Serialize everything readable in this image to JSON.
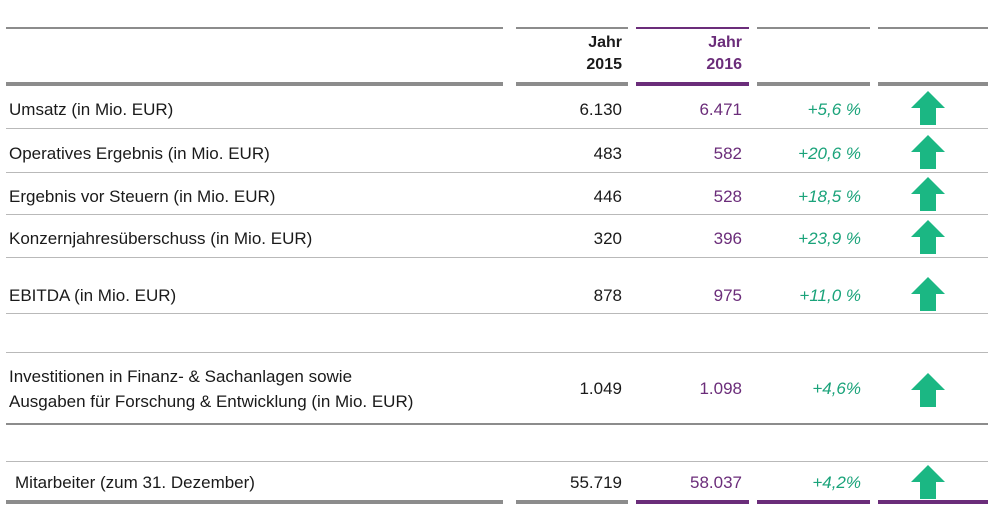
{
  "header": {
    "col_2015_line1": "Jahr",
    "col_2015_line2": "2015",
    "col_2016_line1": "Jahr",
    "col_2016_line2": "2016"
  },
  "colors": {
    "accent_purple": "#6b2d7a",
    "change_green": "#1aa37a",
    "arrow_green": "#1bb783",
    "rule_gray": "#8c8c8c"
  },
  "rows": [
    {
      "label": "Umsatz (in Mio. EUR)",
      "y2015": "6.130",
      "y2016": "6.471",
      "change": "+5,6 %",
      "trend_icon": "arrow-up-icon"
    },
    {
      "label": "Operatives Ergebnis (in Mio. EUR)",
      "y2015": "483",
      "y2016": "582",
      "change": "+20,6 %",
      "trend_icon": "arrow-up-icon"
    },
    {
      "label": "Ergebnis vor Steuern (in Mio. EUR)",
      "y2015": "446",
      "y2016": "528",
      "change": "+18,5 %",
      "trend_icon": "arrow-up-icon"
    },
    {
      "label": "Konzernjahresüberschuss (in Mio. EUR)",
      "y2015": "320",
      "y2016": "396",
      "change": "+23,9 %",
      "trend_icon": "arrow-up-icon"
    },
    {
      "label": "EBITDA (in Mio. EUR)",
      "y2015": "878",
      "y2016": "975",
      "change": "+11,0 %",
      "trend_icon": "arrow-up-icon"
    },
    {
      "label_line1": "Investitionen in Finanz- & Sachanlagen sowie",
      "label_line2": "Ausgaben für Forschung & Entwicklung (in Mio. EUR)",
      "y2015": "1.049",
      "y2016": "1.098",
      "change": "+4,6%",
      "trend_icon": "arrow-up-icon"
    },
    {
      "label": "Mitarbeiter (zum 31. Dezember)",
      "y2015": "55.719",
      "y2016": "58.037",
      "change": "+4,2%",
      "trend_icon": "arrow-up-icon"
    }
  ]
}
